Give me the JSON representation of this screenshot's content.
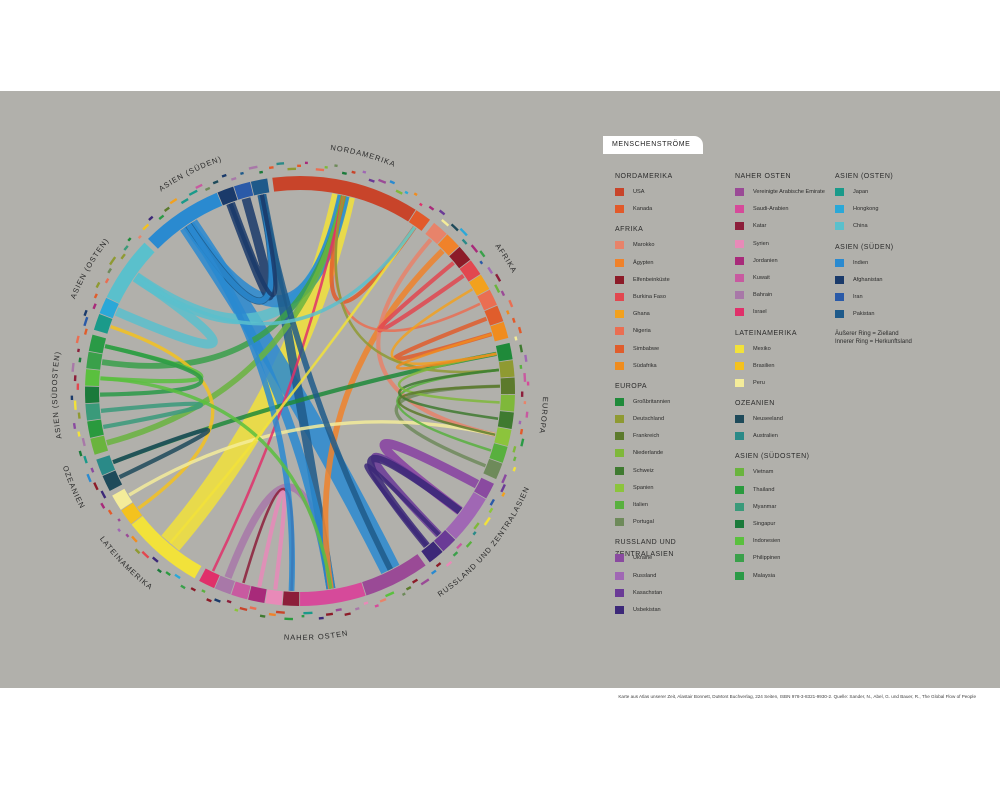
{
  "legend_title": "MENSCHENSTRÖME",
  "ring_note_outer": "Äußerer Ring = Zielland",
  "ring_note_inner": "Innerer Ring = Herkunftsland",
  "footer": "Karte aus Atlas unserer Zeit, Alastair Bonnett, DuMont Buchverlag, 224 Seiten, ISBN 978-3-8321-9930-2. Quelle: Sander, N., Abel, G. und Bauer, R., The Global Flow of People",
  "regions": [
    {
      "name": "NORDAMERIKA",
      "countries": [
        {
          "name": "USA",
          "color": "#c8442a"
        },
        {
          "name": "Kanada",
          "color": "#e25a2a"
        }
      ]
    },
    {
      "name": "AFRIKA",
      "countries": [
        {
          "name": "Marokko",
          "color": "#e8836a"
        },
        {
          "name": "Ägypten",
          "color": "#f0822a"
        },
        {
          "name": "Elfenbeinküste",
          "color": "#8c1b28"
        },
        {
          "name": "Burkina Faso",
          "color": "#e2474f"
        },
        {
          "name": "Ghana",
          "color": "#f2a11e"
        },
        {
          "name": "Nigeria",
          "color": "#ea6e52"
        },
        {
          "name": "Simbabwe",
          "color": "#e05d2c"
        },
        {
          "name": "Südafrika",
          "color": "#f08c1e"
        }
      ]
    },
    {
      "name": "EUROPA",
      "countries": [
        {
          "name": "Großbritannien",
          "color": "#1f8a3a"
        },
        {
          "name": "Deutschland",
          "color": "#8f9a32"
        },
        {
          "name": "Frankreich",
          "color": "#5c7a2c"
        },
        {
          "name": "Niederlande",
          "color": "#7fb83a"
        },
        {
          "name": "Schweiz",
          "color": "#3f7a30"
        },
        {
          "name": "Spanien",
          "color": "#8cc43c"
        },
        {
          "name": "Italien",
          "color": "#58b03e"
        },
        {
          "name": "Portugal",
          "color": "#6e8a5a"
        }
      ]
    },
    {
      "name": "RUSSLAND UND ZENTRALASIEN",
      "countries": [
        {
          "name": "Ukraine",
          "color": "#8a4aa0"
        },
        {
          "name": "Russland",
          "color": "#a067b4"
        },
        {
          "name": "Kasachstan",
          "color": "#6a3a96"
        },
        {
          "name": "Usbekistan",
          "color": "#3c2878"
        }
      ]
    },
    {
      "name": "NAHER OSTEN",
      "countries": [
        {
          "name": "Vereinigte Arabische Emirate",
          "color": "#9a4a96"
        },
        {
          "name": "Saudi-Arabien",
          "color": "#d64a9a"
        },
        {
          "name": "Katar",
          "color": "#8c1e3a"
        },
        {
          "name": "Syrien",
          "color": "#e88ab8"
        },
        {
          "name": "Jordanien",
          "color": "#a82a7a"
        },
        {
          "name": "Kuwait",
          "color": "#c85aa0"
        },
        {
          "name": "Bahrain",
          "color": "#a878a8"
        },
        {
          "name": "Israel",
          "color": "#e0306a"
        }
      ]
    },
    {
      "name": "LATEINAMERIKA",
      "countries": [
        {
          "name": "Mexiko",
          "color": "#f2e23a"
        },
        {
          "name": "Brasilien",
          "color": "#f4c21e"
        },
        {
          "name": "Peru",
          "color": "#f4ec9a"
        }
      ]
    },
    {
      "name": "OZEANIEN",
      "countries": [
        {
          "name": "Neuseeland",
          "color": "#1e4a5a"
        },
        {
          "name": "Australien",
          "color": "#2a8a88"
        }
      ]
    },
    {
      "name": "ASIEN (SÜDOSTEN)",
      "countries": [
        {
          "name": "Vietnam",
          "color": "#6ab43e"
        },
        {
          "name": "Thailand",
          "color": "#2a9a3e"
        },
        {
          "name": "Myanmar",
          "color": "#3a9a7a"
        },
        {
          "name": "Singapur",
          "color": "#1a7a3a"
        },
        {
          "name": "Indonesien",
          "color": "#5ac03e"
        },
        {
          "name": "Philippinen",
          "color": "#3aa04a"
        },
        {
          "name": "Malaysia",
          "color": "#2a9a46"
        }
      ]
    },
    {
      "name": "ASIEN (OSTEN)",
      "countries": [
        {
          "name": "Japan",
          "color": "#1a9a8a"
        },
        {
          "name": "Hongkong",
          "color": "#2aa8d8"
        },
        {
          "name": "China",
          "color": "#5ac0cc"
        }
      ]
    },
    {
      "name": "ASIEN (SÜDEN)",
      "countries": [
        {
          "name": "Indien",
          "color": "#2a8ad0"
        },
        {
          "name": "Afghanistan",
          "color": "#1a3a6a"
        },
        {
          "name": "Iran",
          "color": "#2a5aa8"
        },
        {
          "name": "Pakistan",
          "color": "#1e5a8a"
        }
      ]
    }
  ],
  "ring_labels": [
    "NORDAMERIKA",
    "AFRIKA",
    "EUROPA",
    "RUSSLAND UND ZENTRALASIEN",
    "NAHER OSTEN",
    "ASIEN (SÜDEN)",
    "ASIEN (OSTEN)",
    "ASIEN (SÜDOSTEN)",
    "OZEANIEN",
    "LATEINAMERIKA"
  ],
  "flows": [
    {
      "from": "Mexiko",
      "to": "USA",
      "w": 14
    },
    {
      "from": "Indien",
      "to": "Vereinigte Arabische Emirate",
      "w": 12
    },
    {
      "from": "China",
      "to": "USA",
      "w": 6
    },
    {
      "from": "Indien",
      "to": "USA",
      "w": 7
    },
    {
      "from": "Russland",
      "to": "Ukraine",
      "w": 5
    },
    {
      "from": "Ukraine",
      "to": "Russland",
      "w": 5
    },
    {
      "from": "Kasachstan",
      "to": "Russland",
      "w": 4
    },
    {
      "from": "Usbekistan",
      "to": "Russland",
      "w": 4
    },
    {
      "from": "Bahrain",
      "to": "Saudi-Arabien",
      "w": 4
    },
    {
      "from": "Pakistan",
      "to": "Saudi-Arabien",
      "w": 5
    },
    {
      "from": "Indien",
      "to": "Saudi-Arabien",
      "w": 5
    },
    {
      "from": "Afghanistan",
      "to": "Iran",
      "w": 5
    },
    {
      "from": "Pakistan",
      "to": "Indien",
      "w": 4
    },
    {
      "from": "Indien",
      "to": "Pakistan",
      "w": 3
    },
    {
      "from": "China",
      "to": "Hongkong",
      "w": 5
    },
    {
      "from": "Philippinen",
      "to": "USA",
      "w": 3
    },
    {
      "from": "Vietnam",
      "to": "USA",
      "w": 3
    },
    {
      "from": "Ägypten",
      "to": "Saudi-Arabien",
      "w": 3
    },
    {
      "from": "Marokko",
      "to": "Spanien",
      "w": 2
    },
    {
      "from": "Burkina Faso",
      "to": "Elfenbeinküste",
      "w": 2
    },
    {
      "from": "Simbabwe",
      "to": "Südafrika",
      "w": 2
    },
    {
      "from": "Kanada",
      "to": "USA",
      "w": 2
    },
    {
      "from": "Großbritannien",
      "to": "Australien",
      "w": 2
    },
    {
      "from": "Portugal",
      "to": "Frankreich",
      "w": 1.5
    },
    {
      "from": "Brasilien",
      "to": "Japan",
      "w": 1.5
    },
    {
      "from": "Peru",
      "to": "Spanien",
      "w": 1.5
    },
    {
      "from": "Myanmar",
      "to": "Thailand",
      "w": 2
    },
    {
      "from": "Indonesien",
      "to": "Malaysia",
      "w": 2
    },
    {
      "from": "Malaysia",
      "to": "Singapur",
      "w": 2
    },
    {
      "from": "Neuseeland",
      "to": "Australien",
      "w": 2
    },
    {
      "from": "Syrien",
      "to": "Jordanien",
      "w": 2
    },
    {
      "from": "Israel",
      "to": "USA",
      "w": 1
    },
    {
      "from": "Nigeria",
      "to": "USA",
      "w": 1
    },
    {
      "from": "Ghana",
      "to": "Großbritannien",
      "w": 1
    },
    {
      "from": "Deutschland",
      "to": "USA",
      "w": 1
    },
    {
      "from": "Italien",
      "to": "Deutschland",
      "w": 1
    },
    {
      "from": "Schweiz",
      "to": "Deutschland",
      "w": 1
    },
    {
      "from": "Usbekistan",
      "to": "Kasachstan",
      "w": 2
    },
    {
      "from": "Katar",
      "to": "Kuwait",
      "w": 1
    },
    {
      "from": "Indien",
      "to": "Katar",
      "w": 3
    },
    {
      "from": "Pakistan",
      "to": "Vereinigte Arabische Emirate",
      "w": 3
    },
    {
      "from": "Niederlande",
      "to": "Großbritannien",
      "w": 1
    },
    {
      "from": "Indonesien",
      "to": "Saudi-Arabien",
      "w": 1.5
    },
    {
      "from": "Afghanistan",
      "to": "Pakistan",
      "w": 2
    },
    {
      "from": "Mexiko",
      "to": "Kanada",
      "w": 1
    },
    {
      "from": "China",
      "to": "Kanada",
      "w": 1.5
    },
    {
      "from": "Südafrika",
      "to": "Großbritannien",
      "w": 1
    },
    {
      "from": "Frankreich",
      "to": "Spanien",
      "w": 1
    }
  ]
}
